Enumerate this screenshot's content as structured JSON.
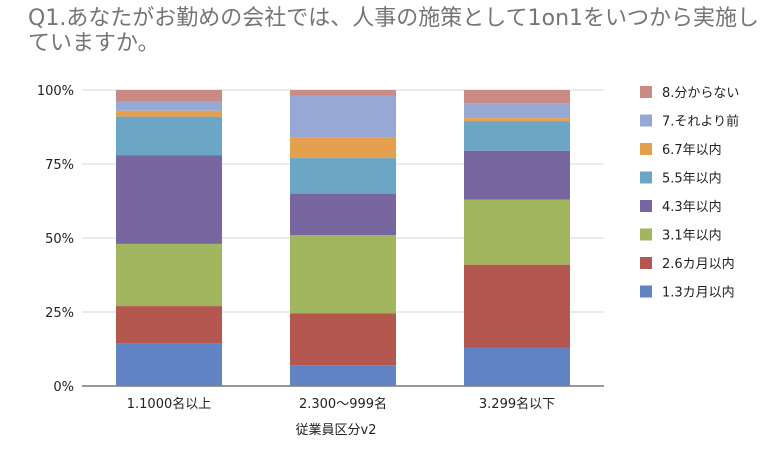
{
  "chart_data": {
    "type": "bar",
    "stacked": true,
    "percent_stacked": true,
    "title": "Q1.あなたがお勤めの会社では、人事の施策として1on1をいつから実施していますか。",
    "xlabel": "従業員区分v2",
    "ylabel": "",
    "ylim": [
      0,
      100
    ],
    "yticks": [
      "0%",
      "25%",
      "50%",
      "75%",
      "100%"
    ],
    "grid": true,
    "legend_position": "right",
    "categories": [
      "1.1000名以上",
      "2.300〜999名",
      "3.299名以下"
    ],
    "series": [
      {
        "name": "1.3カ月以内",
        "color": "#6182c3",
        "values": [
          14.5,
          7,
          13
        ]
      },
      {
        "name": "2.6カ月以内",
        "color": "#b3574f",
        "values": [
          12.5,
          17.5,
          28
        ]
      },
      {
        "name": "3.1年以内",
        "color": "#a2b55f",
        "values": [
          21,
          26.5,
          22
        ]
      },
      {
        "name": "4.3年以内",
        "color": "#7866a0",
        "values": [
          30,
          14,
          16.5
        ]
      },
      {
        "name": "5.5年以内",
        "color": "#6ca6c5",
        "values": [
          13,
          12,
          10
        ]
      },
      {
        "name": "6.7年以内",
        "color": "#e4a04f",
        "values": [
          2,
          7,
          1
        ]
      },
      {
        "name": "7.それより前",
        "color": "#97a8d5",
        "values": [
          3,
          14,
          5
        ]
      },
      {
        "name": "8.分からない",
        "color": "#c98b84",
        "values": [
          4,
          2,
          4.5
        ]
      }
    ]
  }
}
